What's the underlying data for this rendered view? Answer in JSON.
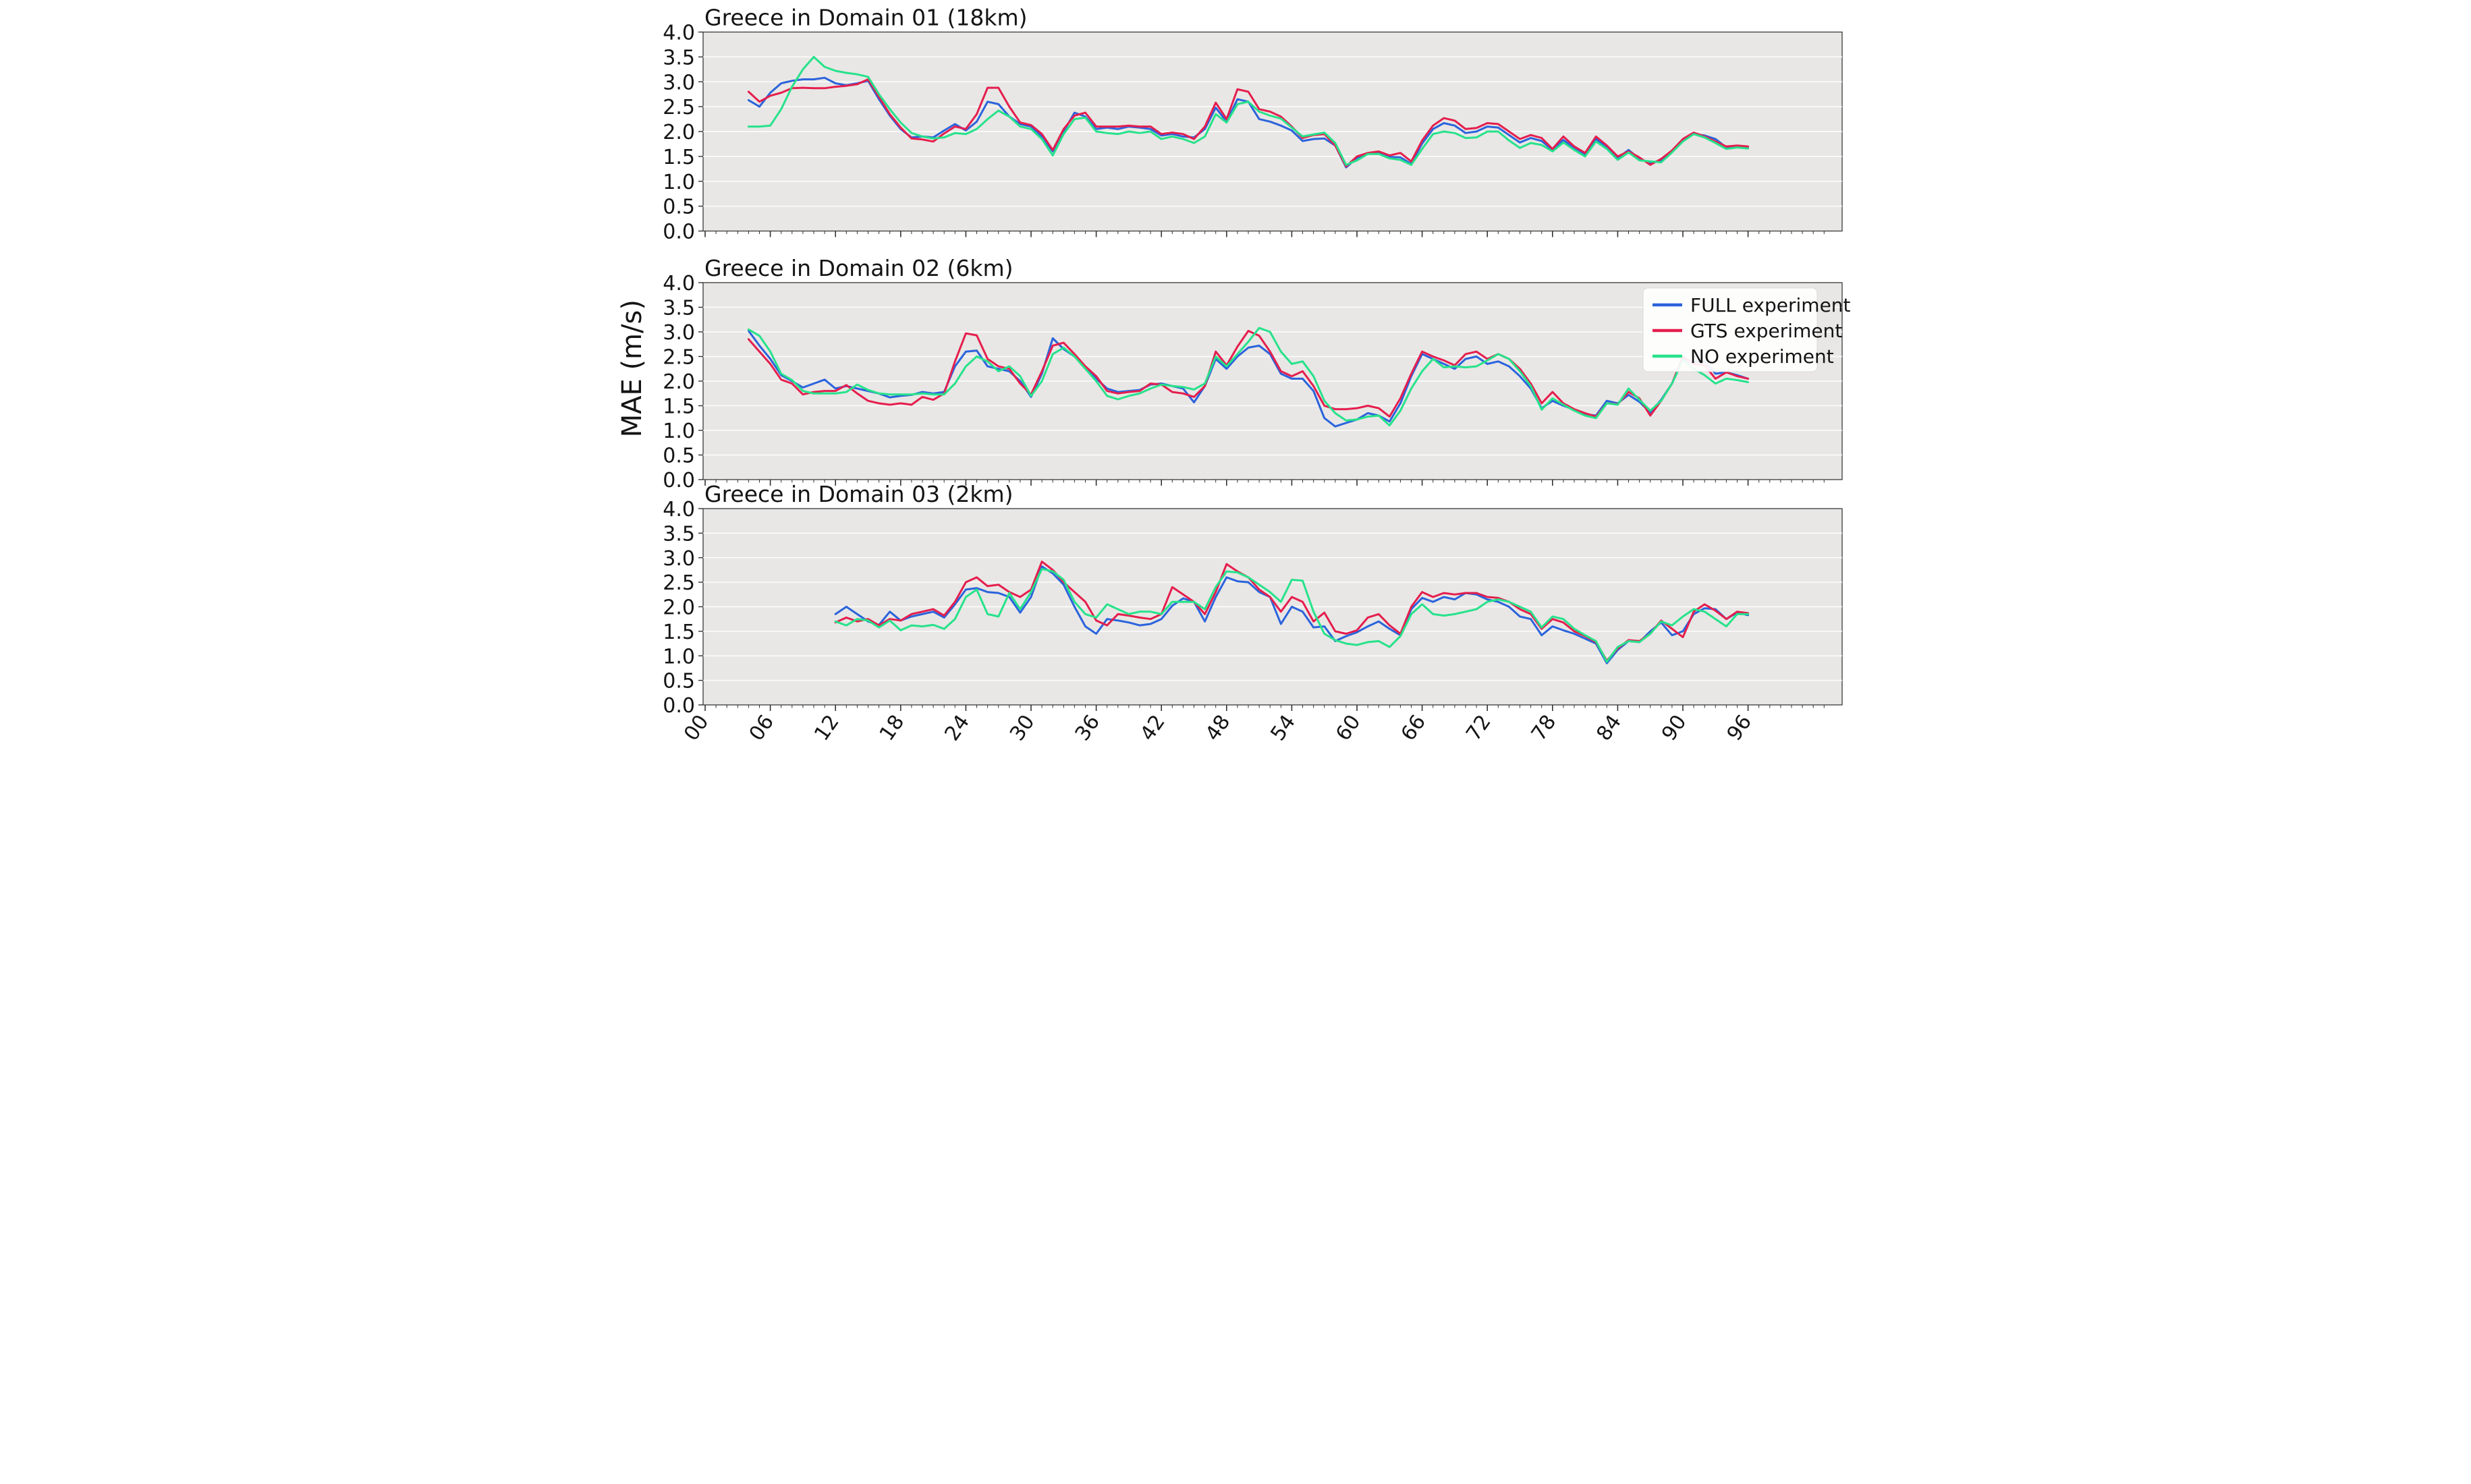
{
  "figure": {
    "ylabel": "MAE (m/s)",
    "colors": {
      "background": "#ffffff",
      "panel_background": "#e8e7e5",
      "gridline": "#ffffff",
      "spine": "#3a3a3a",
      "text": "#141414",
      "tick": "#333333"
    },
    "legend": {
      "entries": [
        {
          "label": "FULL experiment",
          "color": "#2b63dc"
        },
        {
          "label": "GTS experiment",
          "color": "#e51e4d"
        },
        {
          "label": "NO experiment",
          "color": "#27e28b"
        }
      ]
    },
    "x_axis": {
      "tick_hours": [
        0,
        6,
        12,
        18,
        24,
        30,
        36,
        42,
        48,
        54,
        60,
        66,
        72,
        78,
        84,
        90,
        96
      ],
      "tick_labels": [
        "00",
        "06",
        "12",
        "18",
        "24",
        "30",
        "36",
        "42",
        "48",
        "54",
        "60",
        "66",
        "72",
        "78",
        "84",
        "90",
        "96"
      ]
    },
    "y_axis": {
      "ticks": [
        0.0,
        0.5,
        1.0,
        1.5,
        2.0,
        2.5,
        3.0,
        3.5,
        4.0
      ],
      "tick_labels": [
        "0.0",
        "0.5",
        "1.0",
        "1.5",
        "2.0",
        "2.5",
        "3.0",
        "3.5",
        "4.0"
      ]
    }
  },
  "chart_data": [
    {
      "type": "line",
      "title": "Greece in Domain 01 (18km)",
      "xlabel": "",
      "ylabel": "MAE (m/s)",
      "ylim": [
        0.0,
        4.0
      ],
      "xlim": [
        -0.2,
        104.5
      ],
      "grid": "horizontal-white-on-gray",
      "legend_position": "none",
      "x_start": 4,
      "x_step": 1,
      "series": [
        {
          "name": "FULL experiment",
          "color": "#2b63dc",
          "values": [
            2.63,
            2.5,
            2.78,
            2.97,
            3.02,
            3.05,
            3.05,
            3.08,
            2.97,
            2.93,
            2.97,
            3.02,
            2.65,
            2.32,
            2.05,
            1.88,
            1.9,
            1.88,
            2.02,
            2.15,
            2.02,
            2.2,
            2.6,
            2.55,
            2.3,
            2.15,
            2.1,
            1.9,
            1.6,
            2.0,
            2.38,
            2.3,
            2.05,
            2.08,
            2.05,
            2.1,
            2.08,
            2.05,
            1.92,
            1.95,
            1.9,
            1.88,
            2.05,
            2.48,
            2.2,
            2.65,
            2.6,
            2.25,
            2.2,
            2.12,
            2.02,
            1.81,
            1.85,
            1.86,
            1.72,
            1.28,
            1.47,
            1.55,
            1.57,
            1.49,
            1.48,
            1.35,
            1.76,
            2.05,
            2.17,
            2.12,
            1.97,
            2.0,
            2.1,
            2.08,
            1.93,
            1.78,
            1.87,
            1.81,
            1.63,
            1.83,
            1.67,
            1.53,
            1.85,
            1.68,
            1.47,
            1.63,
            1.45,
            1.37,
            1.42,
            1.6,
            1.82,
            1.95,
            1.92,
            1.85,
            1.68,
            1.7,
            1.67
          ]
        },
        {
          "name": "GTS experiment",
          "color": "#e51e4d",
          "values": [
            2.8,
            2.6,
            2.72,
            2.78,
            2.87,
            2.88,
            2.87,
            2.87,
            2.9,
            2.92,
            2.95,
            3.05,
            2.7,
            2.35,
            2.08,
            1.86,
            1.84,
            1.8,
            1.96,
            2.1,
            2.05,
            2.35,
            2.88,
            2.88,
            2.5,
            2.18,
            2.13,
            1.95,
            1.63,
            2.05,
            2.32,
            2.38,
            2.1,
            2.1,
            2.1,
            2.12,
            2.1,
            2.1,
            1.95,
            1.98,
            1.95,
            1.85,
            2.1,
            2.58,
            2.25,
            2.85,
            2.8,
            2.45,
            2.4,
            2.3,
            2.1,
            1.87,
            1.93,
            1.95,
            1.72,
            1.3,
            1.5,
            1.57,
            1.6,
            1.52,
            1.57,
            1.4,
            1.82,
            2.12,
            2.27,
            2.22,
            2.05,
            2.07,
            2.17,
            2.15,
            2.0,
            1.85,
            1.93,
            1.87,
            1.65,
            1.9,
            1.7,
            1.57,
            1.9,
            1.72,
            1.5,
            1.6,
            1.48,
            1.33,
            1.45,
            1.62,
            1.85,
            1.98,
            1.9,
            1.8,
            1.7,
            1.72,
            1.7
          ]
        },
        {
          "name": "NO experiment",
          "color": "#27e28b",
          "values": [
            2.1,
            2.1,
            2.12,
            2.45,
            2.9,
            3.25,
            3.5,
            3.3,
            3.22,
            3.18,
            3.15,
            3.1,
            2.75,
            2.45,
            2.18,
            1.97,
            1.9,
            1.86,
            1.88,
            1.97,
            1.95,
            2.05,
            2.25,
            2.42,
            2.3,
            2.1,
            2.05,
            1.85,
            1.52,
            1.95,
            2.25,
            2.28,
            2.0,
            1.97,
            1.95,
            2.0,
            1.97,
            2.0,
            1.85,
            1.9,
            1.85,
            1.77,
            1.9,
            2.35,
            2.18,
            2.55,
            2.6,
            2.4,
            2.32,
            2.26,
            2.08,
            1.9,
            1.94,
            1.98,
            1.77,
            1.33,
            1.42,
            1.55,
            1.55,
            1.46,
            1.43,
            1.33,
            1.65,
            1.95,
            2.0,
            1.97,
            1.87,
            1.88,
            2.0,
            2.0,
            1.82,
            1.67,
            1.77,
            1.73,
            1.6,
            1.78,
            1.63,
            1.5,
            1.8,
            1.65,
            1.43,
            1.58,
            1.42,
            1.4,
            1.38,
            1.58,
            1.8,
            1.95,
            1.88,
            1.77,
            1.65,
            1.68,
            1.66
          ]
        }
      ]
    },
    {
      "type": "line",
      "title": "Greece in Domain 02 (6km)",
      "xlabel": "",
      "ylabel": "MAE (m/s)",
      "ylim": [
        0.0,
        4.0
      ],
      "xlim": [
        -0.2,
        104.5
      ],
      "grid": "horizontal-white-on-gray",
      "legend_position": "upper-right",
      "x_start": 4,
      "x_step": 1,
      "series": [
        {
          "name": "FULL experiment",
          "color": "#2b63dc",
          "values": [
            3.02,
            2.72,
            2.45,
            2.12,
            2.0,
            1.87,
            1.95,
            2.03,
            1.85,
            1.9,
            1.85,
            1.8,
            1.75,
            1.67,
            1.7,
            1.72,
            1.78,
            1.75,
            1.78,
            2.3,
            2.6,
            2.62,
            2.3,
            2.25,
            2.2,
            2.0,
            1.68,
            2.15,
            2.87,
            2.65,
            2.5,
            2.28,
            2.05,
            1.85,
            1.78,
            1.8,
            1.82,
            1.93,
            1.95,
            1.9,
            1.85,
            1.57,
            1.9,
            2.45,
            2.25,
            2.5,
            2.68,
            2.72,
            2.55,
            2.15,
            2.05,
            2.05,
            1.8,
            1.25,
            1.08,
            1.15,
            1.22,
            1.35,
            1.3,
            1.18,
            1.55,
            2.1,
            2.55,
            2.45,
            2.35,
            2.25,
            2.45,
            2.5,
            2.35,
            2.4,
            2.3,
            2.1,
            1.85,
            1.45,
            1.6,
            1.5,
            1.42,
            1.33,
            1.3,
            1.6,
            1.55,
            1.72,
            1.58,
            1.36,
            1.62,
            1.95,
            2.45,
            2.38,
            2.4,
            2.15,
            2.18,
            2.12,
            2.05
          ]
        },
        {
          "name": "GTS experiment",
          "color": "#e51e4d",
          "values": [
            2.85,
            2.6,
            2.35,
            2.03,
            1.95,
            1.73,
            1.78,
            1.8,
            1.8,
            1.92,
            1.75,
            1.6,
            1.55,
            1.52,
            1.55,
            1.52,
            1.68,
            1.62,
            1.75,
            2.4,
            2.97,
            2.93,
            2.45,
            2.3,
            2.25,
            1.95,
            1.73,
            2.2,
            2.72,
            2.78,
            2.55,
            2.3,
            2.1,
            1.8,
            1.75,
            1.78,
            1.8,
            1.95,
            1.93,
            1.78,
            1.75,
            1.68,
            1.9,
            2.6,
            2.32,
            2.7,
            3.02,
            2.92,
            2.6,
            2.2,
            2.1,
            2.2,
            1.9,
            1.5,
            1.43,
            1.43,
            1.45,
            1.5,
            1.45,
            1.28,
            1.65,
            2.15,
            2.6,
            2.5,
            2.42,
            2.32,
            2.55,
            2.6,
            2.45,
            2.55,
            2.45,
            2.25,
            1.95,
            1.55,
            1.78,
            1.55,
            1.43,
            1.35,
            1.28,
            1.55,
            1.53,
            1.78,
            1.65,
            1.3,
            1.6,
            1.95,
            2.5,
            2.35,
            2.32,
            2.05,
            2.18,
            2.1,
            2.05
          ]
        },
        {
          "name": "NO experiment",
          "color": "#27e28b",
          "values": [
            3.05,
            2.92,
            2.6,
            2.15,
            2.02,
            1.8,
            1.75,
            1.75,
            1.75,
            1.78,
            1.93,
            1.82,
            1.75,
            1.73,
            1.73,
            1.73,
            1.75,
            1.73,
            1.73,
            1.95,
            2.3,
            2.5,
            2.4,
            2.2,
            2.3,
            2.1,
            1.7,
            2.0,
            2.55,
            2.68,
            2.5,
            2.25,
            2.0,
            1.7,
            1.63,
            1.7,
            1.75,
            1.85,
            1.93,
            1.9,
            1.88,
            1.83,
            1.95,
            2.5,
            2.3,
            2.55,
            2.8,
            3.08,
            3.0,
            2.6,
            2.35,
            2.4,
            2.1,
            1.6,
            1.35,
            1.2,
            1.22,
            1.28,
            1.3,
            1.1,
            1.4,
            1.85,
            2.2,
            2.45,
            2.28,
            2.3,
            2.28,
            2.3,
            2.42,
            2.55,
            2.45,
            2.2,
            1.9,
            1.42,
            1.65,
            1.52,
            1.4,
            1.3,
            1.25,
            1.55,
            1.52,
            1.85,
            1.62,
            1.4,
            1.6,
            1.95,
            2.42,
            2.25,
            2.12,
            1.95,
            2.05,
            2.02,
            1.98
          ]
        }
      ]
    },
    {
      "type": "line",
      "title": "Greece in Domain 03 (2km)",
      "xlabel": "",
      "ylabel": "MAE (m/s)",
      "ylim": [
        0.0,
        4.0
      ],
      "xlim": [
        -0.2,
        104.5
      ],
      "grid": "horizontal-white-on-gray",
      "legend_position": "none",
      "x_start": 12,
      "x_step": 1,
      "series": [
        {
          "name": "FULL experiment",
          "color": "#2b63dc",
          "values": [
            1.85,
            2.0,
            1.85,
            1.7,
            1.63,
            1.9,
            1.72,
            1.8,
            1.85,
            1.9,
            1.78,
            2.05,
            2.35,
            2.38,
            2.3,
            2.28,
            2.2,
            1.88,
            2.2,
            2.82,
            2.68,
            2.45,
            2.0,
            1.6,
            1.45,
            1.75,
            1.72,
            1.68,
            1.62,
            1.65,
            1.75,
            2.02,
            2.17,
            2.1,
            1.7,
            2.2,
            2.6,
            2.52,
            2.5,
            2.3,
            2.2,
            1.65,
            2.0,
            1.9,
            1.58,
            1.6,
            1.3,
            1.4,
            1.48,
            1.6,
            1.7,
            1.55,
            1.42,
            1.95,
            2.18,
            2.1,
            2.2,
            2.15,
            2.28,
            2.25,
            2.15,
            2.1,
            2.0,
            1.8,
            1.75,
            1.42,
            1.6,
            1.52,
            1.45,
            1.35,
            1.25,
            0.85,
            1.12,
            1.3,
            1.28,
            1.5,
            1.68,
            1.42,
            1.5,
            1.85,
            1.97,
            1.95,
            1.75,
            1.88,
            1.83
          ]
        },
        {
          "name": "GTS experiment",
          "color": "#e51e4d",
          "values": [
            1.68,
            1.78,
            1.7,
            1.75,
            1.62,
            1.75,
            1.72,
            1.85,
            1.9,
            1.95,
            1.82,
            2.1,
            2.5,
            2.6,
            2.42,
            2.45,
            2.3,
            2.2,
            2.35,
            2.92,
            2.75,
            2.5,
            2.3,
            2.1,
            1.72,
            1.62,
            1.85,
            1.82,
            1.78,
            1.75,
            1.85,
            2.4,
            2.25,
            2.1,
            1.85,
            2.3,
            2.87,
            2.72,
            2.6,
            2.35,
            2.2,
            1.9,
            2.2,
            2.1,
            1.7,
            1.88,
            1.5,
            1.45,
            1.52,
            1.78,
            1.85,
            1.62,
            1.45,
            2.0,
            2.3,
            2.2,
            2.28,
            2.25,
            2.28,
            2.28,
            2.2,
            2.18,
            2.1,
            1.95,
            1.85,
            1.55,
            1.75,
            1.68,
            1.5,
            1.4,
            1.28,
            0.9,
            1.15,
            1.32,
            1.3,
            1.45,
            1.72,
            1.55,
            1.38,
            1.9,
            2.05,
            1.92,
            1.75,
            1.9,
            1.87
          ]
        },
        {
          "name": "NO experiment",
          "color": "#27e28b",
          "values": [
            1.7,
            1.62,
            1.75,
            1.72,
            1.58,
            1.72,
            1.52,
            1.62,
            1.6,
            1.63,
            1.55,
            1.75,
            2.2,
            2.35,
            1.85,
            1.8,
            2.28,
            1.95,
            2.3,
            2.77,
            2.72,
            2.55,
            2.1,
            1.85,
            1.78,
            2.05,
            1.95,
            1.85,
            1.9,
            1.9,
            1.85,
            2.1,
            2.1,
            2.1,
            1.95,
            2.4,
            2.72,
            2.7,
            2.6,
            2.45,
            2.3,
            2.1,
            2.55,
            2.53,
            1.9,
            1.45,
            1.32,
            1.25,
            1.22,
            1.28,
            1.3,
            1.18,
            1.4,
            1.85,
            2.05,
            1.85,
            1.82,
            1.85,
            1.9,
            1.95,
            2.1,
            2.15,
            2.1,
            2.0,
            1.9,
            1.58,
            1.8,
            1.75,
            1.55,
            1.42,
            1.3,
            0.88,
            1.18,
            1.3,
            1.28,
            1.45,
            1.7,
            1.62,
            1.8,
            1.95,
            1.9,
            1.75,
            1.6,
            1.85,
            1.85
          ]
        }
      ]
    }
  ]
}
